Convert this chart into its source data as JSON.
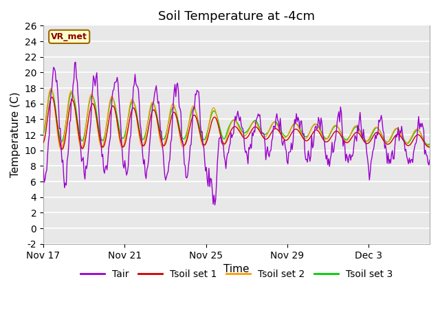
{
  "title": "Soil Temperature at -4cm",
  "xlabel": "Time",
  "ylabel": "Temperature (C)",
  "ylim": [
    -2,
    26
  ],
  "xlim_days": [
    0,
    19
  ],
  "xtick_labels": [
    "Nov 17",
    "Nov 21",
    "Nov 25",
    "Nov 29",
    "Dec 3"
  ],
  "xtick_positions": [
    0,
    4,
    8,
    12,
    16
  ],
  "ytick_positions": [
    -2,
    0,
    2,
    4,
    6,
    8,
    10,
    12,
    14,
    16,
    18,
    20,
    22,
    24,
    26
  ],
  "line_colors": {
    "Tair": "#9900cc",
    "Tsoil_set1": "#cc0000",
    "Tsoil_set2": "#ff9900",
    "Tsoil_set3": "#00cc00"
  },
  "legend_labels": [
    "Tair",
    "Tsoil set 1",
    "Tsoil set 2",
    "Tsoil set 3"
  ],
  "annotation_text": "VR_met",
  "annotation_bbox_facecolor": "#ffffcc",
  "annotation_bbox_edgecolor": "#996600",
  "plot_background": "#e8e8e8",
  "grid_color": "#ffffff",
  "title_fontsize": 13,
  "axis_label_fontsize": 11,
  "tick_fontsize": 10,
  "legend_fontsize": 10
}
